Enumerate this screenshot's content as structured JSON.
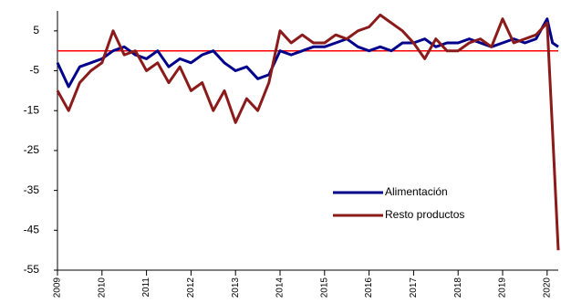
{
  "chart_data": {
    "type": "line",
    "x": [
      2009,
      2009.25,
      2009.5,
      2009.75,
      2010,
      2010.25,
      2010.5,
      2010.75,
      2011,
      2011.25,
      2011.5,
      2011.75,
      2012,
      2012.25,
      2012.5,
      2012.75,
      2013,
      2013.25,
      2013.5,
      2013.75,
      2014,
      2014.25,
      2014.5,
      2014.75,
      2015,
      2015.25,
      2015.5,
      2015.75,
      2016,
      2016.25,
      2016.5,
      2016.75,
      2017,
      2017.25,
      2017.5,
      2017.75,
      2018,
      2018.25,
      2018.5,
      2018.75,
      2019,
      2019.25,
      2019.5,
      2019.75,
      2020,
      2020.12,
      2020.25
    ],
    "series": [
      {
        "name": "Alimentación",
        "color": "#00008b",
        "values": [
          -3,
          -9,
          -4,
          -3,
          -2,
          0,
          1,
          -1,
          -2,
          0,
          -4,
          -2,
          -3,
          -1,
          0,
          -3,
          -5,
          -4,
          -7,
          -6,
          0,
          -1,
          0,
          1,
          1,
          2,
          3,
          1,
          0,
          1,
          0,
          2,
          2,
          3,
          1,
          2,
          2,
          3,
          2,
          1,
          2,
          3,
          2,
          3,
          8,
          2,
          1
        ]
      },
      {
        "name": "Resto productos",
        "color": "#8b1a1a",
        "values": [
          -10,
          -15,
          -8,
          -5,
          -3,
          5,
          -1,
          0,
          -5,
          -3,
          -8,
          -4,
          -10,
          -8,
          -15,
          -10,
          -18,
          -12,
          -15,
          -8,
          5,
          2,
          4,
          2,
          2,
          4,
          3,
          5,
          6,
          9,
          7,
          5,
          2,
          -2,
          3,
          0,
          0,
          2,
          3,
          1,
          8,
          2,
          3,
          4,
          7,
          -20,
          -50
        ]
      }
    ],
    "reference_line": {
      "value": 0,
      "color": "#ff0000"
    },
    "xlim": [
      2009,
      2020.25
    ],
    "xticks": [
      2009,
      2010,
      2011,
      2012,
      2013,
      2014,
      2015,
      2016,
      2017,
      2018,
      2019,
      2020
    ],
    "ylim": [
      -55,
      10
    ],
    "yticks": [
      5,
      -5,
      -15,
      -25,
      -35,
      -45,
      -55
    ],
    "legend": "lower-right"
  }
}
